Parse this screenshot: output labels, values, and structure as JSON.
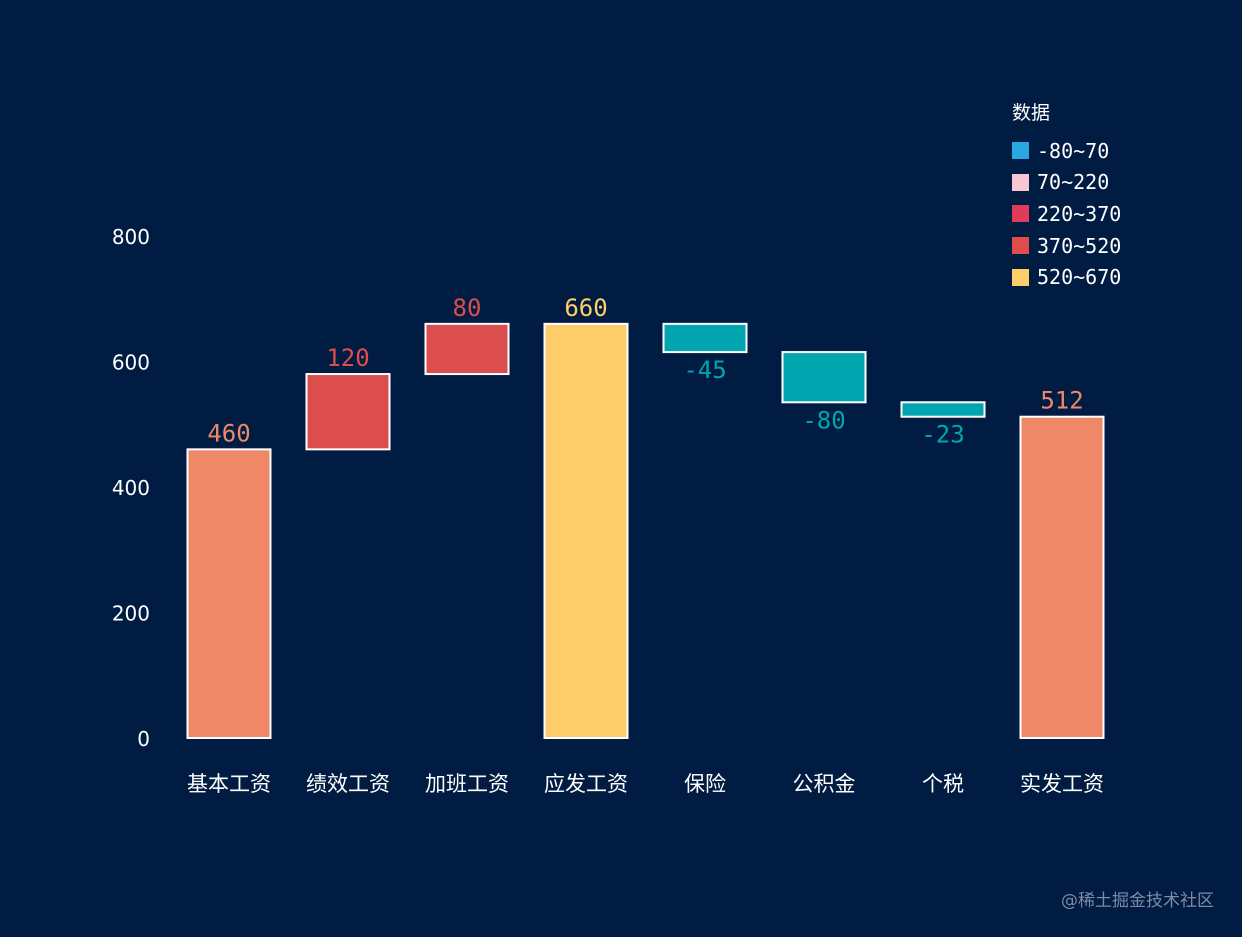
{
  "chart_data": {
    "type": "bar",
    "subtype": "waterfall",
    "categories": [
      "基本工资",
      "绩效工资",
      "加班工资",
      "应发工资",
      "保险",
      "公积金",
      "个税",
      "实发工资"
    ],
    "values": [
      460,
      120,
      80,
      660,
      -45,
      -80,
      -23,
      512
    ],
    "is_total": [
      true,
      false,
      false,
      true,
      false,
      false,
      false,
      true
    ],
    "data_labels": [
      "460",
      "120",
      "80",
      "660",
      "-45",
      "-80",
      "-23",
      "512"
    ],
    "bar_colors": [
      "#ef8867",
      "#dc4d4d",
      "#dc4d4d",
      "#fdcd6a",
      "#00a5b0",
      "#00a5b0",
      "#00a5b0",
      "#ef8867"
    ],
    "y_ticks": [
      0,
      200,
      400,
      600,
      800
    ],
    "ylim": [
      0,
      800
    ],
    "grid": false,
    "legend": {
      "title": "数据",
      "position": "top-right",
      "items": [
        {
          "label": "-80~70",
          "color": "#29a9e1"
        },
        {
          "label": "70~220",
          "color": "#f8c7d5"
        },
        {
          "label": "220~370",
          "color": "#e03c5a"
        },
        {
          "label": "370~520",
          "color": "#de4d4a"
        },
        {
          "label": "520~670",
          "color": "#fdcd6a"
        }
      ]
    }
  },
  "watermark": "@稀土掘金技术社区"
}
